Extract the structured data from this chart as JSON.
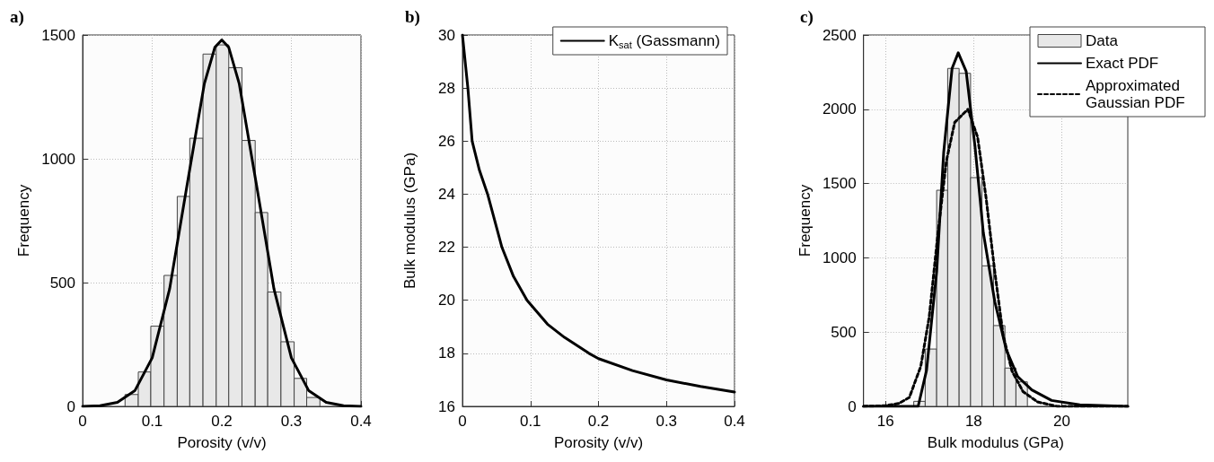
{
  "chart_data": [
    {
      "type": "histogram",
      "title": "a)",
      "xlabel": "Porosity (v/v)",
      "ylabel": "Frequency",
      "xlim": [
        0,
        0.4
      ],
      "xticks": [
        0,
        0.1,
        0.2,
        0.3,
        0.4
      ],
      "ylim": [
        0,
        1500
      ],
      "yticks": [
        0,
        500,
        1000,
        1500
      ],
      "grid": true,
      "marker": "none",
      "series": [
        {
          "type": "histogram",
          "color": "#e8e8e8",
          "bins": [
            0.061,
            0.08,
            0.098,
            0.117,
            0.136,
            0.154,
            0.173,
            0.192,
            0.21,
            0.229,
            0.248,
            0.266,
            0.285,
            0.304,
            0.322,
            0.341
          ],
          "values": [
            48,
            139,
            324,
            529,
            848,
            1083,
            1423,
            1460,
            1368,
            1074,
            783,
            462,
            261,
            113,
            36
          ]
        },
        {
          "type": "line",
          "color": "#000000",
          "line_style": "solid",
          "x": [
            0,
            0.025,
            0.05,
            0.075,
            0.1,
            0.125,
            0.15,
            0.175,
            0.19,
            0.2,
            0.21,
            0.225,
            0.25,
            0.275,
            0.3,
            0.325,
            0.35,
            0.375,
            0.4
          ],
          "values": [
            0,
            3,
            16,
            63,
            196,
            474,
            892,
            1304,
            1450,
            1480,
            1450,
            1304,
            892,
            474,
            196,
            63,
            16,
            3,
            0
          ]
        }
      ]
    },
    {
      "type": "line",
      "title": "b)",
      "xlabel": "Porosity (v/v)",
      "ylabel": "Bulk modulus (GPa)",
      "xlim": [
        0,
        0.4
      ],
      "xticks": [
        0,
        0.1,
        0.2,
        0.3,
        0.4
      ],
      "ylim": [
        16,
        30
      ],
      "yticks": [
        16,
        18,
        20,
        22,
        24,
        26,
        28,
        30
      ],
      "grid": true,
      "legend": "top right",
      "marker": "none",
      "series": [
        {
          "name": "K$_{sat}$ (Gassmann)",
          "color": "#000000",
          "line_style": "solid",
          "x": [
            0,
            0.008,
            0.0143,
            0.025,
            0.037,
            0.058,
            0.075,
            0.095,
            0.125,
            0.15,
            0.186,
            0.2,
            0.25,
            0.3,
            0.35,
            0.4
          ],
          "values": [
            30,
            28,
            26,
            24.9,
            24,
            22,
            20.9,
            20,
            19.1,
            18.6,
            18,
            17.8,
            17.35,
            17.0,
            16.75,
            16.54
          ]
        }
      ]
    },
    {
      "type": "histogram",
      "title": "c)",
      "xlabel": "Bulk modulus (GPa)",
      "ylabel": "Frequency",
      "xlim": [
        15.5,
        21.5
      ],
      "xticks": [
        16,
        18,
        20
      ],
      "ylim": [
        0,
        2500
      ],
      "yticks": [
        0,
        500,
        1000,
        1500,
        2000,
        2500
      ],
      "grid": true,
      "legend": "top right",
      "marker": "none",
      "series": [
        {
          "type": "histogram",
          "name": "Data",
          "color": "#e8e8e8",
          "bins": [
            16.64,
            16.9,
            17.16,
            17.41,
            17.67,
            17.93,
            18.19,
            18.45,
            18.71,
            18.96,
            19.22
          ],
          "values": [
            34,
            386,
            1455,
            2275,
            2242,
            1540,
            946,
            544,
            258,
            165
          ]
        },
        {
          "type": "line",
          "name": "Exact PDF",
          "color": "#000000",
          "line_style": "solid",
          "x": [
            15.5,
            16.5,
            16.74,
            16.93,
            17.16,
            17.32,
            17.51,
            17.65,
            17.83,
            18.03,
            18.22,
            18.48,
            18.74,
            19.0,
            19.32,
            19.77,
            20.41,
            21.5
          ],
          "values": [
            0,
            0,
            0,
            242,
            906,
            1711,
            2275,
            2380,
            2255,
            1751,
            1168,
            705,
            382,
            201,
            111,
            40,
            10,
            0
          ]
        },
        {
          "type": "line",
          "name": "Approximated Gaussian PDF",
          "color": "#000000",
          "line_style": "dashed",
          "x": [
            15.5,
            16.0,
            16.3,
            16.54,
            16.8,
            16.99,
            17.19,
            17.38,
            17.57,
            17.87,
            18.09,
            18.28,
            18.48,
            18.67,
            18.87,
            19.12,
            19.45,
            19.9,
            21.5
          ],
          "values": [
            0,
            5,
            20,
            60,
            270,
            600,
            1168,
            1651,
            1912,
            2000,
            1812,
            1409,
            906,
            479,
            238,
            100,
            30,
            0,
            0
          ]
        }
      ]
    }
  ]
}
